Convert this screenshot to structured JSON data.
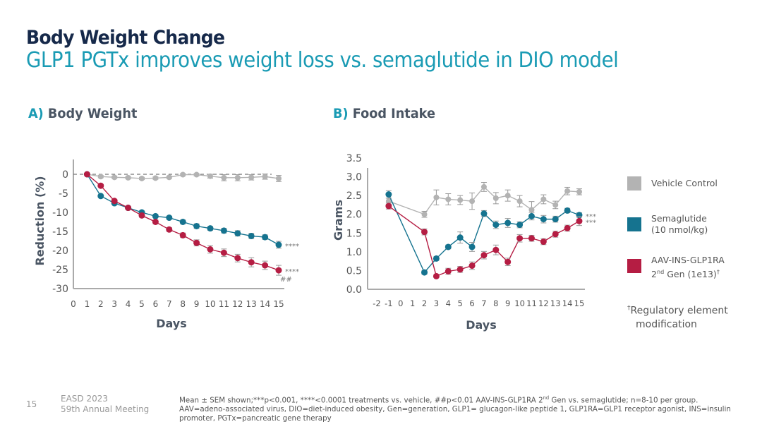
{
  "header": {
    "title": "Body Weight Change",
    "subtitle": "GLP1 PGTx improves weight loss vs. semaglutide in DIO model"
  },
  "colors": {
    "vehicle": "#b3b3b3",
    "semaglutide": "#15738f",
    "aav": "#b51d43",
    "title": "#16294a",
    "accent": "#1a9bb4"
  },
  "panels": {
    "a": {
      "letter": "A)",
      "label": "Body Weight"
    },
    "b": {
      "letter": "B)",
      "label": "Food Intake"
    }
  },
  "legend": {
    "items": [
      {
        "key": "vehicle",
        "line1": "Vehicle Control",
        "line2": ""
      },
      {
        "key": "semaglutide",
        "line1": "Semaglutide",
        "line2": "(10 nmol/kg)"
      },
      {
        "key": "aav",
        "line1": "AAV-INS-GLP1RA",
        "line2_pre": "2",
        "line2_sup": "nd",
        "line2_post": " Gen (1e13)",
        "line2_dagger": "†"
      }
    ],
    "note_dagger": "†",
    "note_line1": "Regulatory element",
    "note_line2": "modification"
  },
  "footer": {
    "page_number": "15",
    "meeting_line1": "EASD 2023",
    "meeting_line2": "59th Annual Meeting",
    "note_part1": "Mean ± SEM shown;***p<0.001, ****<0.0001 treatments vs. vehicle, ##p<0.01 AAV-INS-GLP1RA 2",
    "note_sup": "nd",
    "note_part2": " Gen vs. semaglutide; n=8-10 per group. AAV=adeno-associated virus, DIO=diet-induced obesity, Gen=generation, GLP1= glucagon-like peptide 1, GLP1RA=GLP1 receptor agonist, INS=insulin promoter, PGTx=pancreatic gene therapy"
  },
  "chart_data": [
    {
      "type": "line",
      "title": "A) Body Weight",
      "xlabel": "Days",
      "ylabel": "Reduction (%)",
      "xlim": [
        0,
        15
      ],
      "ylim": [
        -30,
        0
      ],
      "xticks": [
        "0",
        "1",
        "2",
        "3",
        "4",
        "5",
        "6",
        "7",
        "8",
        "9",
        "10",
        "11",
        "12",
        "13",
        "14",
        "15"
      ],
      "yticks": [
        "0",
        "-5",
        "-10",
        "-15",
        "-20",
        "-25",
        "-30"
      ],
      "ytick_values": [
        0,
        -5,
        -10,
        -15,
        -20,
        -25,
        -30
      ],
      "reference_line": 0,
      "grid": false,
      "x": [
        1,
        2,
        3,
        4,
        5,
        6,
        7,
        8,
        9,
        10,
        11,
        12,
        13,
        14,
        15
      ],
      "series": [
        {
          "name": "Vehicle Control",
          "key": "vehicle",
          "values": [
            0,
            -0.6,
            -0.8,
            -0.9,
            -1.1,
            -1.0,
            -0.8,
            -0.1,
            -0.1,
            -0.5,
            -0.9,
            -0.9,
            -0.8,
            -0.6,
            -1.1
          ],
          "sem": [
            0,
            0.3,
            0.3,
            0.3,
            0.3,
            0.3,
            0.3,
            0.3,
            0.3,
            0.5,
            0.8,
            0.8,
            0.7,
            0.7,
            0.8
          ]
        },
        {
          "name": "Semaglutide (10 nmol/kg)",
          "key": "semaglutide",
          "values": [
            0,
            -5.7,
            -7.6,
            -8.8,
            -10.0,
            -11.0,
            -11.4,
            -12.5,
            -13.6,
            -14.2,
            -14.8,
            -15.5,
            -16.2,
            -16.5,
            -18.5
          ],
          "sem": [
            0,
            0.3,
            0.3,
            0.3,
            0.4,
            0.4,
            0.4,
            0.5,
            0.6,
            0.5,
            0.6,
            0.7,
            0.7,
            0.6,
            0.9
          ],
          "annotation": "****"
        },
        {
          "name": "AAV-INS-GLP1RA 2nd Gen (1e13)",
          "key": "aav",
          "values": [
            0,
            -3.0,
            -7.0,
            -8.8,
            -10.8,
            -12.5,
            -14.5,
            -16.0,
            -18.0,
            -19.7,
            -20.6,
            -22.0,
            -23.1,
            -23.9,
            -25.2
          ],
          "sem": [
            0,
            0.3,
            0.4,
            0.4,
            0.5,
            0.5,
            0.5,
            0.6,
            0.8,
            1.0,
            1.0,
            1.0,
            1.2,
            1.1,
            1.3
          ],
          "annotation": "****",
          "annotation2": "##"
        }
      ]
    },
    {
      "type": "line",
      "title": "B) Food Intake",
      "xlabel": "Days",
      "ylabel": "Grams",
      "xlim": [
        -2,
        15
      ],
      "ylim": [
        0,
        3.5
      ],
      "xticks": [
        "-2",
        "-1",
        "0",
        "1",
        "2",
        "3",
        "4",
        "5",
        "6",
        "7",
        "8",
        "9",
        "10",
        "11",
        "12",
        "13",
        "14",
        "15"
      ],
      "yticks": [
        "0.0",
        "0.5",
        "1.0",
        "1.5",
        "2.0",
        "2.5",
        "3.0",
        "3.5"
      ],
      "ytick_values": [
        0,
        0.5,
        1,
        1.5,
        2,
        2.5,
        3,
        3.5
      ],
      "grid": false,
      "x": [
        -1,
        2,
        3,
        4,
        5,
        6,
        7,
        8,
        9,
        10,
        11,
        12,
        13,
        14,
        15
      ],
      "series": [
        {
          "name": "Vehicle Control",
          "key": "vehicle",
          "values": [
            2.35,
            2.0,
            2.45,
            2.4,
            2.38,
            2.35,
            2.73,
            2.43,
            2.5,
            2.35,
            2.12,
            2.4,
            2.25,
            2.62,
            2.6
          ],
          "sem": [
            0.08,
            0.08,
            0.2,
            0.15,
            0.12,
            0.22,
            0.12,
            0.15,
            0.15,
            0.15,
            0.22,
            0.12,
            0.1,
            0.1,
            0.08
          ]
        },
        {
          "name": "Semaglutide (10 nmol/kg)",
          "key": "semaglutide",
          "values": [
            2.53,
            0.45,
            0.82,
            1.13,
            1.38,
            1.13,
            2.02,
            1.72,
            1.77,
            1.72,
            1.95,
            1.87,
            1.87,
            2.1,
            1.98
          ],
          "sem": [
            0.1,
            0.05,
            0.05,
            0.05,
            0.15,
            0.12,
            0.08,
            0.1,
            0.12,
            0.08,
            0.1,
            0.1,
            0.08,
            0.06,
            0.06
          ],
          "annotation": "***"
        },
        {
          "name": "AAV-INS-GLP1RA 2nd Gen (1e13)",
          "key": "aav",
          "values": [
            2.22,
            1.53,
            0.35,
            0.48,
            0.53,
            0.63,
            0.91,
            1.05,
            0.73,
            1.36,
            1.36,
            1.27,
            1.47,
            1.63,
            1.82
          ],
          "sem": [
            0.08,
            0.08,
            0.04,
            0.08,
            0.08,
            0.1,
            0.1,
            0.13,
            0.1,
            0.1,
            0.08,
            0.08,
            0.08,
            0.08,
            0.12
          ],
          "annotation": "***"
        }
      ]
    }
  ]
}
